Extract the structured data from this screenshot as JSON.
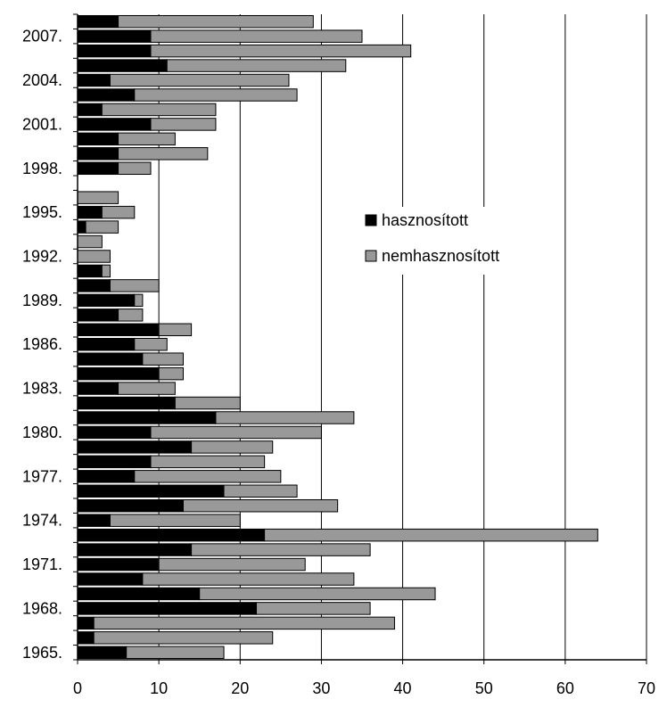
{
  "chart_data": {
    "type": "bar",
    "orientation": "horizontal",
    "stacked": true,
    "grid": true,
    "legend_position": "right-middle",
    "categories": [
      "1965.",
      "1966.",
      "1967.",
      "1968.",
      "1969.",
      "1970.",
      "1971.",
      "1972.",
      "1973.",
      "1974.",
      "1975.",
      "1976.",
      "1977.",
      "1978.",
      "1979.",
      "1980.",
      "1981.",
      "1982.",
      "1983.",
      "1984.",
      "1985.",
      "1986.",
      "1987.",
      "1988.",
      "1989.",
      "1990.",
      "1991.",
      "1992.",
      "1993.",
      "1994.",
      "1995.",
      "1996.",
      "1997.",
      "1998.",
      "1999.",
      "2000.",
      "2001.",
      "2002.",
      "2003.",
      "2004.",
      "2005.",
      "2006.",
      "2007.",
      "2008."
    ],
    "category_labels": [
      "1965.",
      "",
      "",
      "1968.",
      "",
      "",
      "1971.",
      "",
      "",
      "1974.",
      "",
      "",
      "1977.",
      "",
      "",
      "1980.",
      "",
      "",
      "1983.",
      "",
      "",
      "1986.",
      "",
      "",
      "1989.",
      "",
      "",
      "1992.",
      "",
      "",
      "1995.",
      "",
      "",
      "1998.",
      "",
      "",
      "2001.",
      "",
      "",
      "2004.",
      "",
      "",
      "2007.",
      ""
    ],
    "series": [
      {
        "name": "hasznosított",
        "color": "#000000",
        "values": [
          6,
          2,
          2,
          22,
          15,
          8,
          10,
          14,
          23,
          4,
          13,
          18,
          7,
          9,
          14,
          9,
          17,
          12,
          5,
          10,
          8,
          7,
          10,
          5,
          7,
          4,
          3,
          0,
          0,
          1,
          3,
          0,
          0,
          5,
          5,
          5,
          9,
          3,
          7,
          4,
          11,
          9,
          9,
          5
        ]
      },
      {
        "name": "nemhasznosított",
        "color": "#999999",
        "values": [
          12,
          22,
          37,
          14,
          29,
          26,
          18,
          22,
          41,
          16,
          19,
          9,
          18,
          14,
          10,
          21,
          17,
          8,
          7,
          3,
          5,
          4,
          4,
          3,
          1,
          6,
          1,
          4,
          3,
          4,
          4,
          5,
          0,
          4,
          11,
          7,
          8,
          14,
          20,
          22,
          22,
          32,
          26,
          24
        ]
      }
    ],
    "xlim": [
      0,
      70
    ],
    "xticks": [
      0,
      10,
      20,
      30,
      40,
      50,
      60,
      70
    ],
    "title": "",
    "xlabel": "",
    "ylabel": ""
  }
}
